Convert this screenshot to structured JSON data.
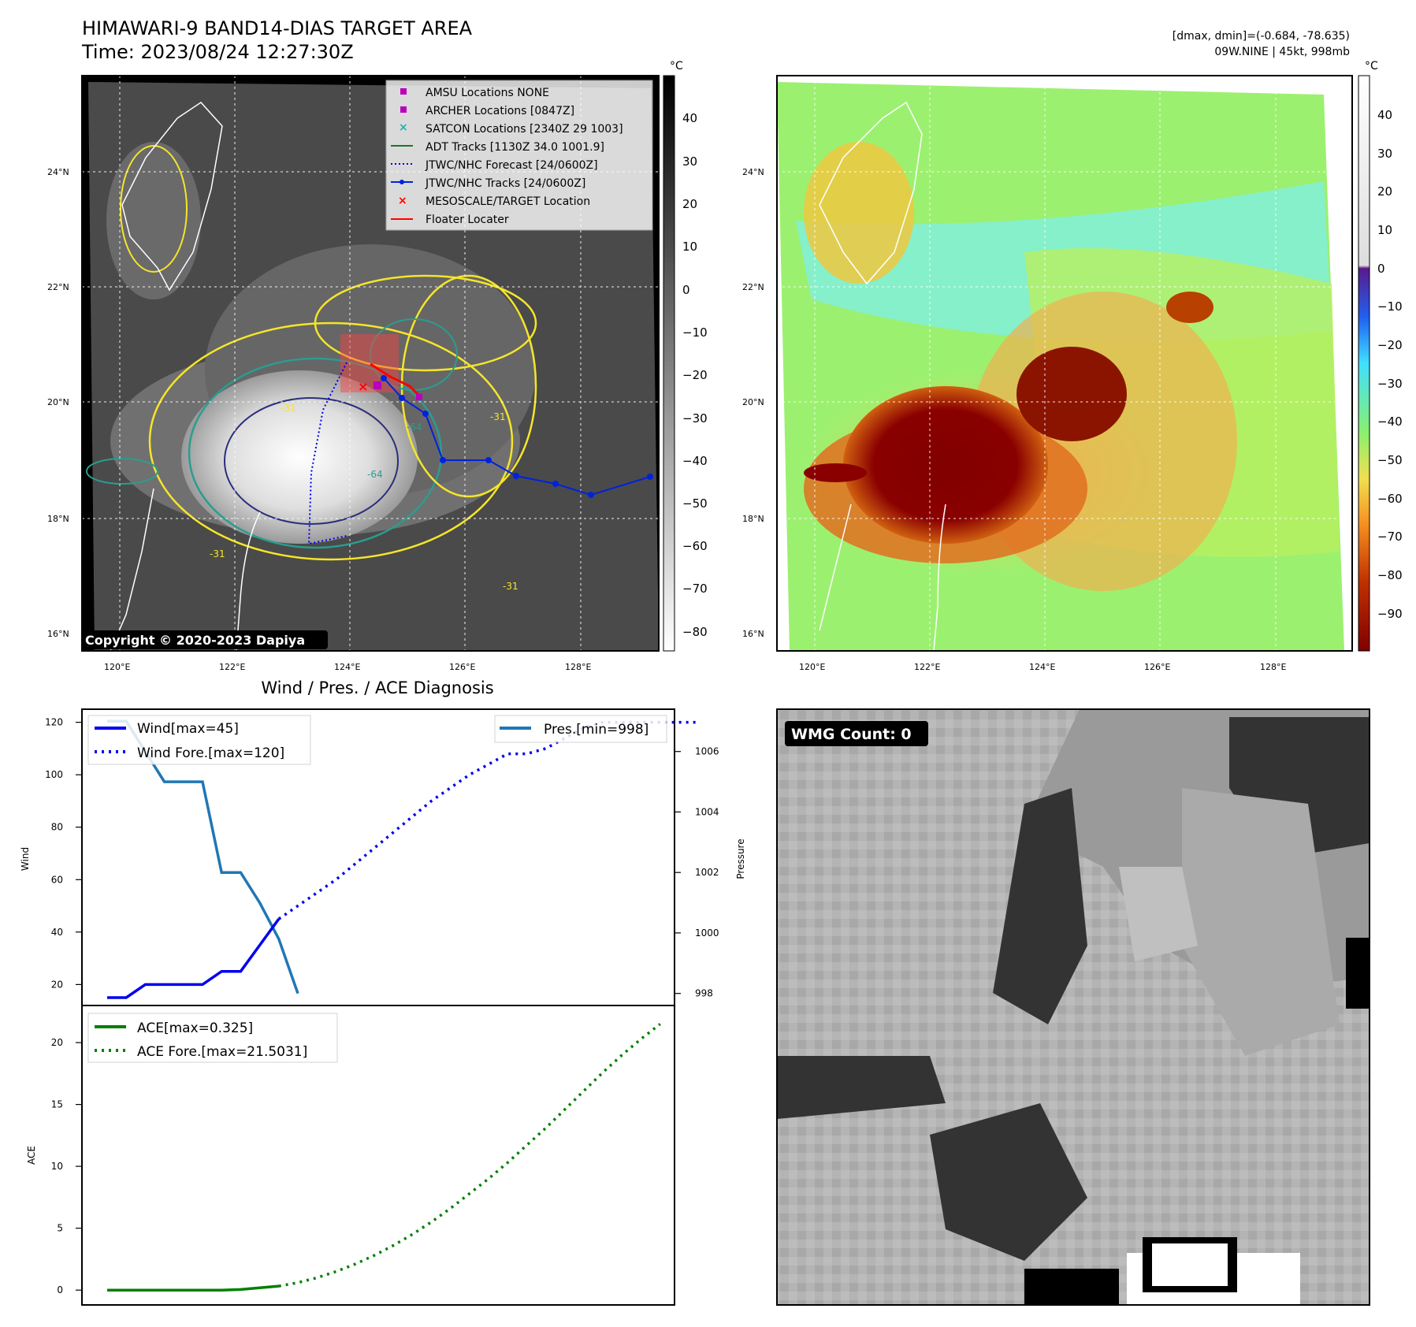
{
  "header": {
    "title_line1": "HIMAWARI-9 BAND14-DIAS TARGET AREA",
    "title_line2": "Time: 2023/08/24 12:27:30Z",
    "dmax_dmin": "[dmax, dmin]=(-0.684, -78.635)",
    "storm_info": "09W.NINE | 45kt, 998mb"
  },
  "colors": {
    "wind": "#0000ee",
    "pressure": "#1f77b4",
    "ace": "#008000",
    "yellow_contour": "#f5e52a",
    "teal_contour": "#2a9d8f",
    "navy_contour": "#2b2f7a",
    "track": "#0022dd",
    "target": "#ff0000",
    "marker": "#bb00bb"
  },
  "map_ir": {
    "unit": "°C",
    "lat_labels": [
      "24°N",
      "22°N",
      "20°N",
      "18°N",
      "16°N"
    ],
    "lon_labels": [
      "120°E",
      "122°E",
      "124°E",
      "126°E",
      "128°E"
    ],
    "colorbar_ticks": [
      "40",
      "30",
      "20",
      "10",
      "0",
      "−10",
      "−20",
      "−30",
      "−40",
      "−50",
      "−60",
      "−70",
      "−80"
    ],
    "legend": [
      {
        "label": "AMSU Locations NONE",
        "marker": "square",
        "color": "#bb00bb"
      },
      {
        "label": "ARCHER Locations [0847Z]",
        "marker": "square",
        "color": "#bb00bb"
      },
      {
        "label": "SATCON Locations [2340Z 29 1003]",
        "marker": "x",
        "color": "#20b2aa"
      },
      {
        "label": "ADT Tracks [1130Z 34.0 1001.9]",
        "marker": "line",
        "color": "#1a7a1a"
      },
      {
        "label": "JTWC/NHC Forecast [24/0600Z]",
        "marker": "dotted",
        "color": "#0000ee"
      },
      {
        "label": "JTWC/NHC Tracks [24/0600Z]",
        "marker": "line-dot",
        "color": "#0022dd"
      },
      {
        "label": "MESOSCALE/TARGET Location",
        "marker": "x",
        "color": "#ff0000"
      },
      {
        "label": "Floater Locater",
        "marker": "line",
        "color": "#ff0000"
      }
    ],
    "contour_labels": [
      "-31",
      "-31",
      "-64",
      "-64",
      "-31",
      "-31"
    ],
    "copyright": "Copyright © 2020-2023 Dapiya"
  },
  "map_color": {
    "unit": "°C",
    "lat_labels": [
      "24°N",
      "22°N",
      "20°N",
      "18°N",
      "16°N"
    ],
    "lon_labels": [
      "120°E",
      "122°E",
      "124°E",
      "126°E",
      "128°E"
    ],
    "colorbar_ticks": [
      "40",
      "30",
      "20",
      "10",
      "0",
      "−10",
      "−20",
      "−30",
      "−40",
      "−50",
      "−60",
      "−70",
      "−80",
      "−90"
    ]
  },
  "diag": {
    "title": "Wind / Pres. / ACE Diagnosis",
    "wind_label": "Wind",
    "pressure_label": "Pressure",
    "ace_label": "ACE",
    "wind_legend": "Wind[max=45]",
    "wind_fore_legend": "Wind Fore.[max=120]",
    "pres_legend": "Pres.[min=998]",
    "ace_legend": "ACE[max=0.325]",
    "ace_fore_legend": "ACE Fore.[max=21.5031]",
    "wind_ticks": [
      "20",
      "40",
      "60",
      "80",
      "100",
      "120"
    ],
    "pressure_ticks": [
      "998",
      "1000",
      "1002",
      "1004",
      "1006"
    ],
    "ace_ticks": [
      "0",
      "5",
      "10",
      "15",
      "20"
    ]
  },
  "chart_data": [
    {
      "type": "line",
      "title": "Wind / Pres. / ACE Diagnosis",
      "ylabel": "Wind",
      "ylim": [
        12,
        125
      ],
      "series": [
        {
          "name": "Wind[max=45]",
          "x": [
            0,
            1,
            2,
            3,
            4,
            5,
            6,
            7,
            8,
            9,
            10
          ],
          "values": [
            15,
            15,
            20,
            20,
            20,
            20,
            25,
            25,
            35,
            45,
            null
          ],
          "style": "solid"
        },
        {
          "name": "Wind Fore.[max=120]",
          "x": [
            9,
            10,
            11,
            12,
            13,
            14,
            15,
            16,
            17,
            18,
            19,
            20,
            21,
            22,
            23,
            24,
            25,
            26,
            27,
            28,
            29,
            30,
            31
          ],
          "values": [
            45,
            50,
            55,
            60,
            66,
            72,
            78,
            84,
            90,
            95,
            100,
            104,
            108,
            108,
            110,
            114,
            118,
            120,
            120,
            120,
            120,
            120,
            120
          ],
          "style": "dotted"
        }
      ]
    },
    {
      "type": "line",
      "ylabel": "Pressure",
      "ylim": [
        997.6,
        1007.4
      ],
      "series": [
        {
          "name": "Pres.[min=998]",
          "x": [
            0,
            1,
            2,
            3,
            4,
            5,
            6,
            7,
            8,
            9,
            10
          ],
          "values": [
            1007,
            1007,
            1006,
            1005,
            1005,
            1005,
            1002,
            1002,
            1001,
            999.8,
            998
          ]
        }
      ]
    },
    {
      "type": "line",
      "ylabel": "ACE",
      "ylim": [
        -1.2,
        23
      ],
      "series": [
        {
          "name": "ACE[max=0.325]",
          "x": [
            0,
            1,
            2,
            3,
            4,
            5,
            6,
            7,
            8,
            9
          ],
          "values": [
            0,
            0,
            0,
            0,
            0,
            0,
            0,
            0.05,
            0.18,
            0.325
          ],
          "style": "solid"
        },
        {
          "name": "ACE Fore.[max=21.5031]",
          "x": [
            9,
            10,
            11,
            12,
            13,
            14,
            15,
            16,
            17,
            18,
            19,
            20,
            21,
            22,
            23,
            24,
            25,
            26,
            27,
            28,
            29
          ],
          "values": [
            0.325,
            0.6,
            1.0,
            1.5,
            2.1,
            2.8,
            3.6,
            4.5,
            5.5,
            6.6,
            7.8,
            9.0,
            10.3,
            11.7,
            13.1,
            14.6,
            16.1,
            17.6,
            19.0,
            20.3,
            21.5031
          ],
          "style": "dotted"
        }
      ]
    }
  ],
  "wmg": {
    "label": "WMG Count: 0"
  }
}
